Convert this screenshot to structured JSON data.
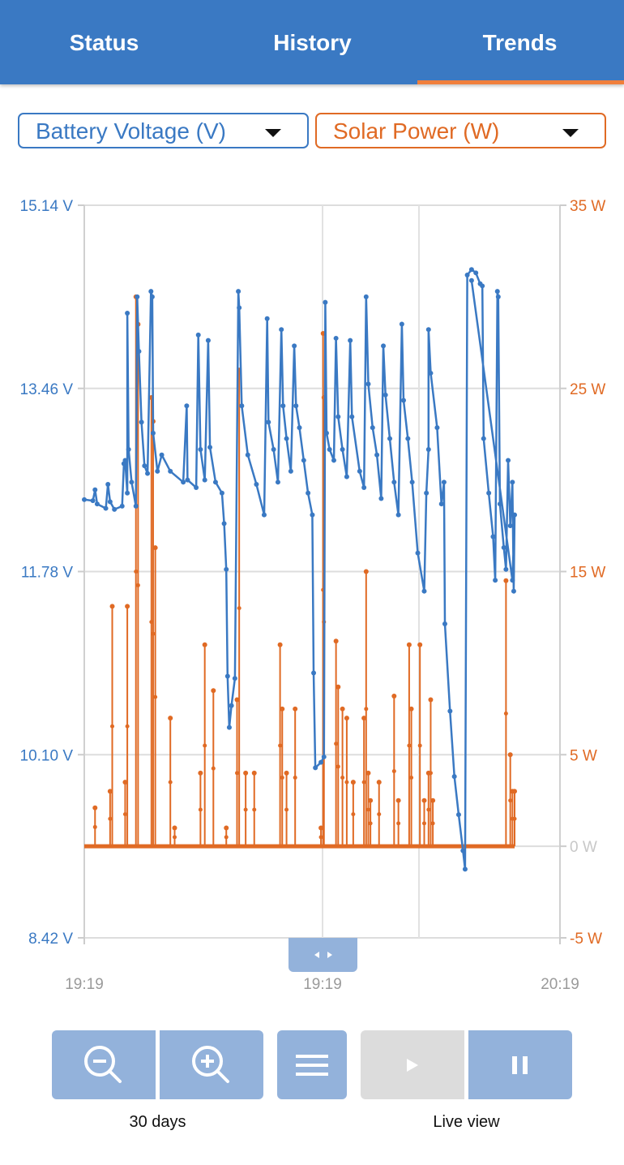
{
  "tabs": [
    {
      "label": "Status",
      "active": false
    },
    {
      "label": "History",
      "active": false
    },
    {
      "label": "Trends",
      "active": true
    }
  ],
  "accent_color": "#f07f3c",
  "selectors": {
    "left": {
      "label": "Battery Voltage (V)",
      "color": "#3a79c3"
    },
    "right": {
      "label": "Solar Power (W)",
      "color": "#e06a24"
    }
  },
  "chart_data": {
    "type": "line",
    "grid": true,
    "left_axis": {
      "ticks": [
        "15.14 V",
        "13.46 V",
        "11.78 V",
        "10.10 V",
        "8.42 V"
      ],
      "range": [
        8.42,
        15.14
      ],
      "color": "#3a79c3"
    },
    "right_axis": {
      "ticks": [
        "35 W",
        "25 W",
        "15 W",
        "5 W",
        "0 W",
        "-5 W"
      ],
      "tick_values": [
        35,
        25,
        15,
        5,
        0,
        -5
      ],
      "range": [
        -5,
        35
      ],
      "color": "#e06a24"
    },
    "x_ticks": [
      "19:19",
      "19:19",
      "20:19"
    ],
    "series": [
      {
        "name": "Battery Voltage (V)",
        "color": "#3a79c3",
        "axis": "left",
        "points": [
          [
            0.0,
            12.44
          ],
          [
            0.02,
            12.43
          ],
          [
            0.025,
            12.53
          ],
          [
            0.03,
            12.4
          ],
          [
            0.05,
            12.36
          ],
          [
            0.055,
            12.58
          ],
          [
            0.06,
            12.42
          ],
          [
            0.07,
            12.35
          ],
          [
            0.088,
            12.38
          ],
          [
            0.092,
            12.77
          ],
          [
            0.095,
            12.8
          ],
          [
            0.1,
            12.5
          ],
          [
            0.1,
            14.15
          ],
          [
            0.103,
            12.9
          ],
          [
            0.11,
            12.6
          ],
          [
            0.12,
            12.38
          ],
          [
            0.123,
            14.3
          ],
          [
            0.127,
            13.8
          ],
          [
            0.133,
            13.15
          ],
          [
            0.14,
            12.75
          ],
          [
            0.147,
            12.68
          ],
          [
            0.155,
            14.35
          ],
          [
            0.158,
            14.3
          ],
          [
            0.16,
            13.05
          ],
          [
            0.17,
            12.7
          ],
          [
            0.18,
            12.85
          ],
          [
            0.2,
            12.7
          ],
          [
            0.23,
            12.6
          ],
          [
            0.238,
            13.3
          ],
          [
            0.24,
            12.62
          ],
          [
            0.26,
            12.55
          ],
          [
            0.265,
            13.95
          ],
          [
            0.27,
            12.9
          ],
          [
            0.28,
            12.62
          ],
          [
            0.288,
            13.9
          ],
          [
            0.292,
            12.92
          ],
          [
            0.305,
            12.6
          ],
          [
            0.32,
            12.5
          ],
          [
            0.325,
            12.22
          ],
          [
            0.33,
            11.8
          ],
          [
            0.333,
            10.82
          ],
          [
            0.337,
            10.35
          ],
          [
            0.342,
            10.55
          ],
          [
            0.35,
            10.8
          ],
          [
            0.358,
            14.35
          ],
          [
            0.36,
            14.2
          ],
          [
            0.366,
            13.3
          ],
          [
            0.38,
            12.85
          ],
          [
            0.4,
            12.58
          ],
          [
            0.418,
            12.3
          ],
          [
            0.425,
            14.1
          ],
          [
            0.428,
            13.15
          ],
          [
            0.44,
            12.9
          ],
          [
            0.45,
            12.6
          ],
          [
            0.458,
            14.0
          ],
          [
            0.462,
            13.3
          ],
          [
            0.47,
            13.0
          ],
          [
            0.48,
            12.7
          ],
          [
            0.488,
            13.85
          ],
          [
            0.492,
            13.3
          ],
          [
            0.5,
            13.1
          ],
          [
            0.51,
            12.8
          ],
          [
            0.52,
            12.5
          ],
          [
            0.53,
            12.3
          ],
          [
            0.533,
            10.85
          ],
          [
            0.537,
            9.98
          ],
          [
            0.55,
            10.03
          ],
          [
            0.557,
            10.08
          ],
          [
            0.56,
            14.25
          ],
          [
            0.563,
            13.05
          ],
          [
            0.57,
            12.9
          ],
          [
            0.58,
            12.8
          ],
          [
            0.585,
            13.92
          ],
          [
            0.59,
            13.2
          ],
          [
            0.6,
            12.9
          ],
          [
            0.61,
            12.65
          ],
          [
            0.618,
            13.9
          ],
          [
            0.622,
            13.2
          ],
          [
            0.64,
            12.7
          ],
          [
            0.65,
            12.55
          ],
          [
            0.655,
            14.3
          ],
          [
            0.66,
            13.5
          ],
          [
            0.67,
            13.1
          ],
          [
            0.68,
            12.85
          ],
          [
            0.69,
            12.45
          ],
          [
            0.695,
            13.85
          ],
          [
            0.7,
            13.4
          ],
          [
            0.71,
            13.0
          ],
          [
            0.72,
            12.6
          ],
          [
            0.73,
            12.3
          ],
          [
            0.738,
            14.05
          ],
          [
            0.742,
            13.35
          ],
          [
            0.752,
            13.0
          ],
          [
            0.762,
            12.6
          ],
          [
            0.775,
            11.95
          ],
          [
            0.79,
            11.6
          ],
          [
            0.795,
            12.5
          ],
          [
            0.8,
            12.9
          ],
          [
            0.8,
            14.0
          ],
          [
            0.805,
            13.6
          ],
          [
            0.82,
            13.1
          ],
          [
            0.83,
            12.4
          ],
          [
            0.836,
            12.6
          ],
          [
            0.838,
            11.3
          ],
          [
            0.85,
            10.5
          ],
          [
            0.86,
            9.9
          ],
          [
            0.87,
            9.55
          ],
          [
            0.88,
            9.22
          ],
          [
            0.885,
            9.05
          ],
          [
            0.89,
            14.5
          ],
          [
            0.9,
            14.55
          ],
          [
            0.91,
            14.52
          ],
          [
            0.92,
            14.42
          ],
          [
            0.925,
            14.4
          ],
          [
            0.928,
            13.0
          ],
          [
            0.94,
            12.5
          ],
          [
            0.95,
            12.1
          ],
          [
            0.955,
            11.7
          ],
          [
            0.96,
            14.35
          ],
          [
            0.962,
            14.3
          ],
          [
            0.966,
            12.4
          ],
          [
            0.975,
            12.0
          ],
          [
            0.98,
            11.8
          ],
          [
            0.985,
            12.8
          ],
          [
            0.99,
            12.2
          ],
          [
            0.995,
            12.6
          ],
          [
            0.998,
            11.6
          ],
          [
            1.0,
            12.3
          ],
          [
            0.995,
            11.7
          ],
          [
            0.9,
            14.45
          ]
        ]
      },
      {
        "name": "Solar Power (W)",
        "color": "#e06a24",
        "axis": "right",
        "spikes": [
          [
            0.025,
            2.1
          ],
          [
            0.06,
            3.0
          ],
          [
            0.065,
            13.1
          ],
          [
            0.095,
            3.5
          ],
          [
            0.1,
            13.1
          ],
          [
            0.12,
            30.0
          ],
          [
            0.125,
            28.5
          ],
          [
            0.156,
            24.5
          ],
          [
            0.16,
            23.2
          ],
          [
            0.165,
            16.3
          ],
          [
            0.2,
            7.0
          ],
          [
            0.21,
            1.0
          ],
          [
            0.27,
            4.0
          ],
          [
            0.28,
            11.0
          ],
          [
            0.3,
            8.5
          ],
          [
            0.33,
            1.0
          ],
          [
            0.355,
            8.0
          ],
          [
            0.36,
            26.0
          ],
          [
            0.375,
            4.0
          ],
          [
            0.395,
            4.0
          ],
          [
            0.455,
            11.0
          ],
          [
            0.46,
            7.5
          ],
          [
            0.47,
            4.0
          ],
          [
            0.49,
            7.5
          ],
          [
            0.55,
            1.0
          ],
          [
            0.555,
            28.0
          ],
          [
            0.557,
            24.5
          ],
          [
            0.585,
            11.2
          ],
          [
            0.59,
            8.7
          ],
          [
            0.6,
            7.5
          ],
          [
            0.61,
            7.0
          ],
          [
            0.625,
            3.5
          ],
          [
            0.65,
            7.0
          ],
          [
            0.655,
            15.0
          ],
          [
            0.66,
            4.0
          ],
          [
            0.665,
            2.5
          ],
          [
            0.685,
            3.5
          ],
          [
            0.72,
            8.2
          ],
          [
            0.73,
            2.5
          ],
          [
            0.755,
            11.0
          ],
          [
            0.76,
            7.5
          ],
          [
            0.78,
            11.0
          ],
          [
            0.79,
            2.5
          ],
          [
            0.8,
            4.0
          ],
          [
            0.805,
            8.0
          ],
          [
            0.81,
            2.5
          ],
          [
            0.98,
            14.5
          ],
          [
            0.99,
            5.0
          ],
          [
            0.995,
            3.0
          ],
          [
            1.0,
            3.0
          ]
        ]
      }
    ]
  },
  "controls": {
    "zoom_out_icon": "zoom-out-icon",
    "zoom_in_icon": "zoom-in-icon",
    "menu_icon": "menu-icon",
    "play_icon": "play-icon",
    "pause_icon": "pause-icon",
    "zoom_label": "30 days",
    "live_label": "Live view"
  }
}
